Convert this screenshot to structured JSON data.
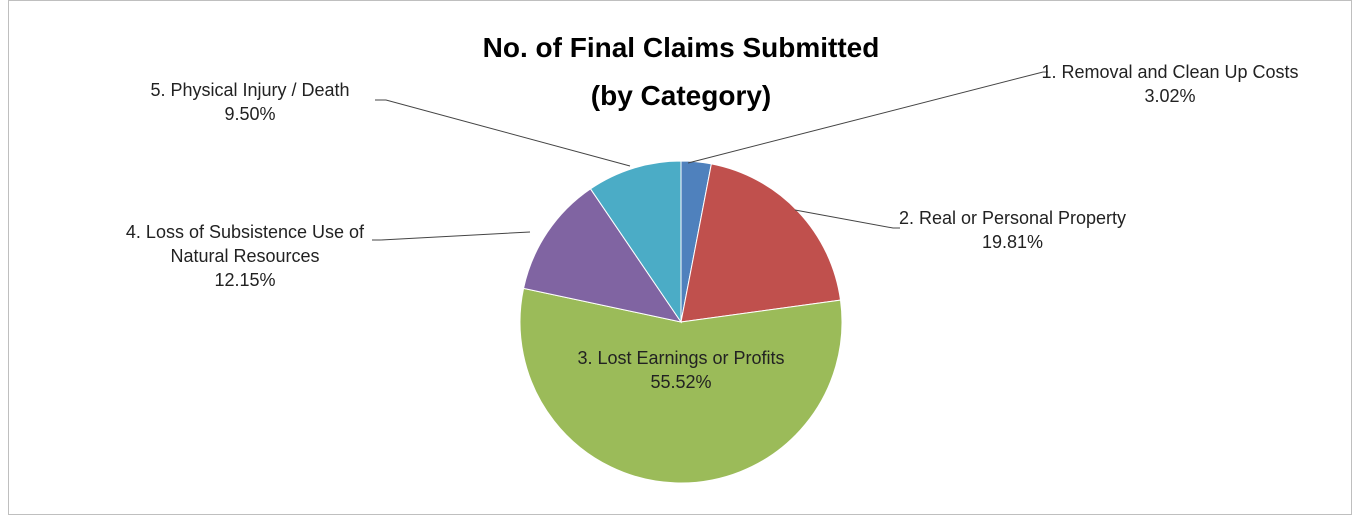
{
  "chart_data": {
    "type": "pie",
    "title": "No. of Final Claims Submitted (by Category)",
    "categories": [
      "1. Removal and Clean Up Costs",
      "2. Real or Personal Property",
      "3. Lost Earnings or Profits",
      "4. Loss of Subsistence Use of Natural Resources",
      "5. Physical Injury / Death"
    ],
    "values": [
      3.02,
      19.81,
      55.52,
      12.15,
      9.5
    ],
    "value_labels": [
      "3.02%",
      "19.81%",
      "55.52%",
      "12.15%",
      "9.50%"
    ],
    "colors": [
      "#4f81bd",
      "#c0504d",
      "#9bbb59",
      "#8064a2",
      "#4bacc6"
    ]
  }
}
